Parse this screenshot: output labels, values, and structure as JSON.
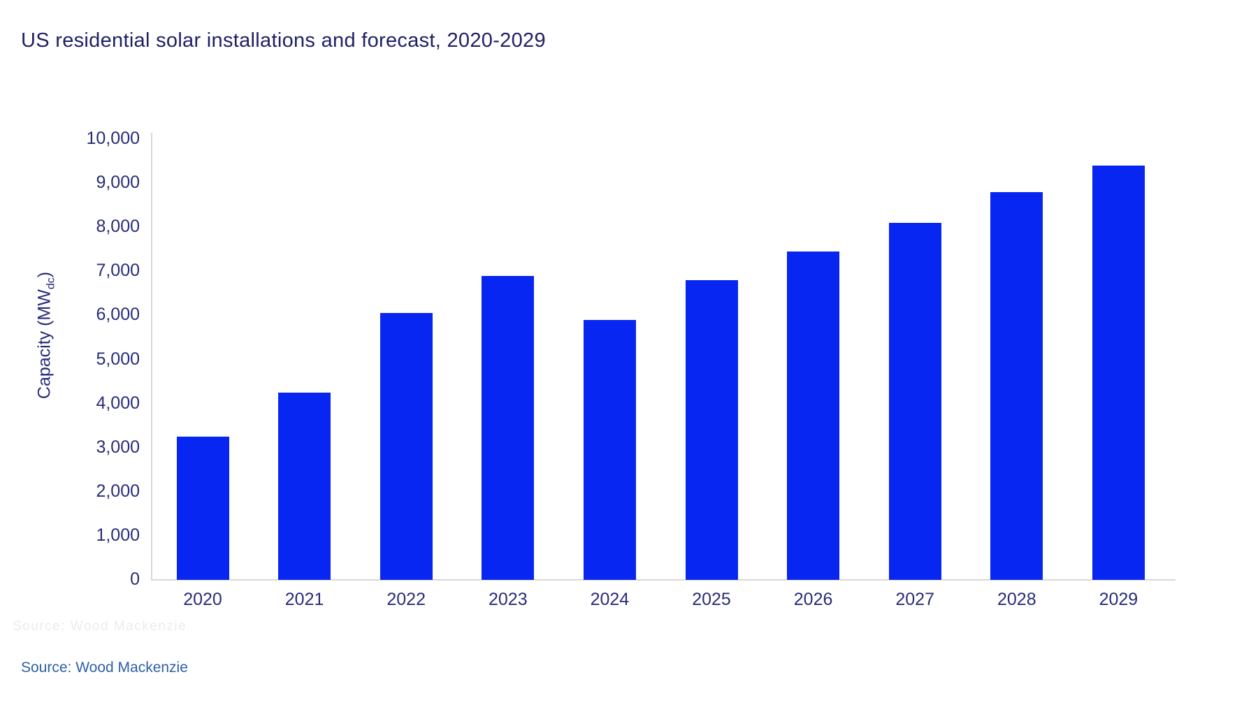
{
  "chart_data": {
    "type": "bar",
    "title": "US residential solar installations and forecast, 2020-2029",
    "categories": [
      "2020",
      "2021",
      "2022",
      "2023",
      "2024",
      "2025",
      "2026",
      "2027",
      "2028",
      "2029"
    ],
    "values": [
      3250,
      4250,
      6050,
      6900,
      5900,
      6800,
      7450,
      8100,
      8800,
      9400
    ],
    "xlabel": "",
    "ylabel_main": "Capacity (MW",
    "ylabel_sub": "dc",
    "ylabel_close": ")",
    "ylim": [
      0,
      10000
    ],
    "ytick_values": [
      0,
      1000,
      2000,
      3000,
      4000,
      5000,
      6000,
      7000,
      8000,
      9000,
      10000
    ],
    "ytick_labels": [
      "0",
      "1,000",
      "2,000",
      "3,000",
      "4,000",
      "5,000",
      "6,000",
      "7,000",
      "8,000",
      "9,000",
      "10,000"
    ],
    "grid": "off",
    "legend": "none",
    "bar_color": "#0826F2"
  },
  "colors": {
    "title_text": "#1F2066",
    "tick_text": "#272D78",
    "axis_line": "#D8D8D8",
    "bar": "#0826F2",
    "source_text": "#2D5EA6"
  },
  "footer": {
    "source": "Source: Wood Mackenzie",
    "ghost_text": "Source: Wood Mackenzie"
  }
}
